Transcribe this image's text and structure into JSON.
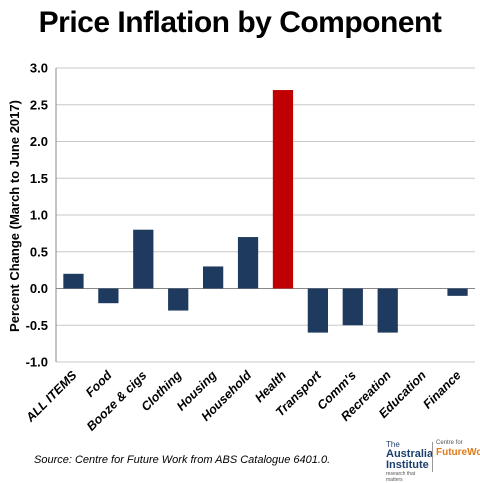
{
  "chart_data": {
    "type": "bar",
    "title": "Price Inflation by Component",
    "ylabel": "Percent Change (March to June 2017)",
    "xlabel": "",
    "categories": [
      "ALL ITEMS",
      "Food",
      "Booze & cigs",
      "Clothing",
      "Housing",
      "Household",
      "Health",
      "Transport",
      "Comm's",
      "Recreation",
      "Education",
      "Finance"
    ],
    "values": [
      0.2,
      -0.2,
      0.8,
      -0.3,
      0.3,
      0.7,
      2.7,
      -0.6,
      -0.5,
      -0.6,
      0.0,
      -0.1
    ],
    "ylim": [
      -1.0,
      3.0
    ],
    "yticks": [
      "3.0",
      "2.5",
      "2.0",
      "1.5",
      "1.0",
      "0.5",
      "0.0",
      "-0.5",
      "-1.0"
    ],
    "grid": true,
    "colors": {
      "default": "#1f3a5f",
      "highlight": "#c00000",
      "highlight_category": "Health"
    }
  },
  "source_note": "Source: Centre for Future Work from ABS Catalogue 6401.0.",
  "logo": {
    "left_small": "The",
    "left_big_1": "Australia",
    "left_big_2": "Institute",
    "left_tiny": "research that matters",
    "right_small": "Centre for",
    "right_big": "FutureWork"
  }
}
